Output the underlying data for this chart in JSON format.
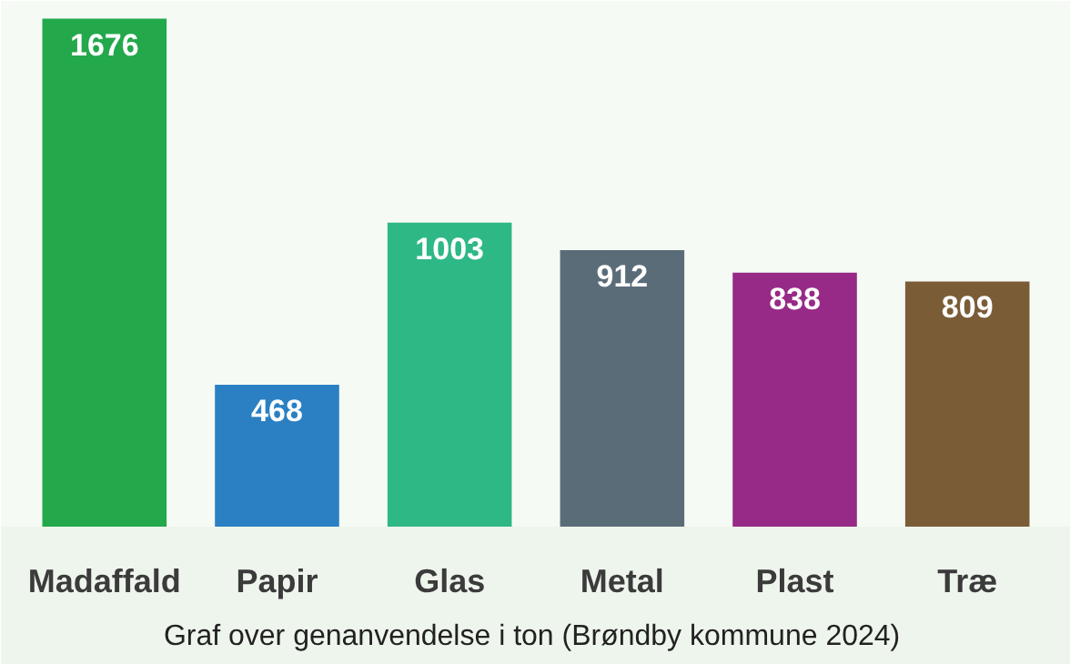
{
  "chart_data": {
    "type": "bar",
    "title": "Graf over genanvendelse i ton  (Brøndby kommune 2024)",
    "categories": [
      "Madaffald",
      "Papir",
      "Glas",
      "Metal",
      "Plast",
      "Træ"
    ],
    "values": [
      1676,
      468,
      1003,
      912,
      838,
      809
    ],
    "colors": [
      "#23a84b",
      "#2a80c3",
      "#2eb886",
      "#5b6c79",
      "#972a86",
      "#7a5d37"
    ],
    "data_labels": true,
    "tick_labels": "x"
  }
}
